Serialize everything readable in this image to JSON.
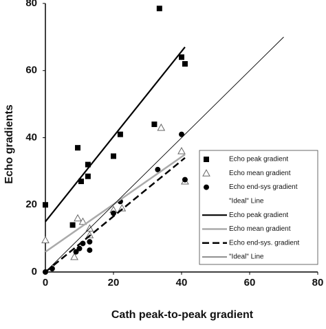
{
  "chart_data": {
    "type": "scatter",
    "x_label": "Cath peak-to-peak gradient",
    "y_label": "Echo gradients",
    "xlim": [
      0,
      80
    ],
    "ylim": [
      0,
      80
    ],
    "xticks": [
      0,
      20,
      40,
      60,
      80
    ],
    "yticks": [
      0,
      20,
      40,
      60,
      80
    ],
    "grid": false,
    "legend": "right",
    "series": [
      {
        "name": "Echo peak gradient",
        "kind": "points",
        "marker": "square",
        "color": "#000000",
        "x": [
          0,
          8,
          9.5,
          10.5,
          12.5,
          12.5,
          20,
          22,
          32,
          33.5,
          40,
          41
        ],
        "values": [
          20,
          14,
          37,
          27,
          32,
          28.5,
          34.5,
          41,
          44,
          78.5,
          64,
          62
        ]
      },
      {
        "name": "Echo mean gradient",
        "kind": "points",
        "marker": "triangle",
        "color": "#666666",
        "x": [
          0,
          8.5,
          9.5,
          11,
          13,
          13,
          20,
          22.5,
          34,
          40,
          41
        ],
        "values": [
          9.5,
          4.5,
          16,
          15,
          13,
          11,
          18.5,
          19,
          43,
          36,
          27
        ]
      },
      {
        "name": "Echo end-sys gradient",
        "kind": "points",
        "marker": "circle",
        "color": "#000000",
        "x": [
          0,
          2,
          9,
          10,
          11,
          13,
          13,
          20,
          22,
          33,
          40,
          41
        ],
        "values": [
          0,
          1,
          6,
          7,
          8.5,
          9,
          6.5,
          17.5,
          21,
          30.5,
          41,
          27.5
        ]
      },
      {
        "name": "\"Ideal\" Line",
        "kind": "points",
        "marker": "none",
        "color": "#000000",
        "x": [],
        "values": []
      },
      {
        "name": "Echo peak gradient",
        "kind": "line",
        "dash": "solid",
        "width": 2.2,
        "color": "#000000",
        "x": [
          0,
          41
        ],
        "values": [
          15,
          67
        ]
      },
      {
        "name": "Echo mean gradient",
        "kind": "line",
        "dash": "solid",
        "width": 2.5,
        "color": "#aaaaaa",
        "x": [
          0,
          41
        ],
        "values": [
          6,
          35
        ]
      },
      {
        "name": "Echo end-sys. gradient",
        "kind": "line",
        "dash": "dashed",
        "width": 2.5,
        "color": "#000000",
        "x": [
          0,
          41
        ],
        "values": [
          0,
          34
        ]
      },
      {
        "name": "\"Ideal\" Line",
        "kind": "line",
        "dash": "solid",
        "width": 0.9,
        "color": "#000000",
        "x": [
          0,
          70
        ],
        "values": [
          0,
          70
        ]
      }
    ]
  }
}
